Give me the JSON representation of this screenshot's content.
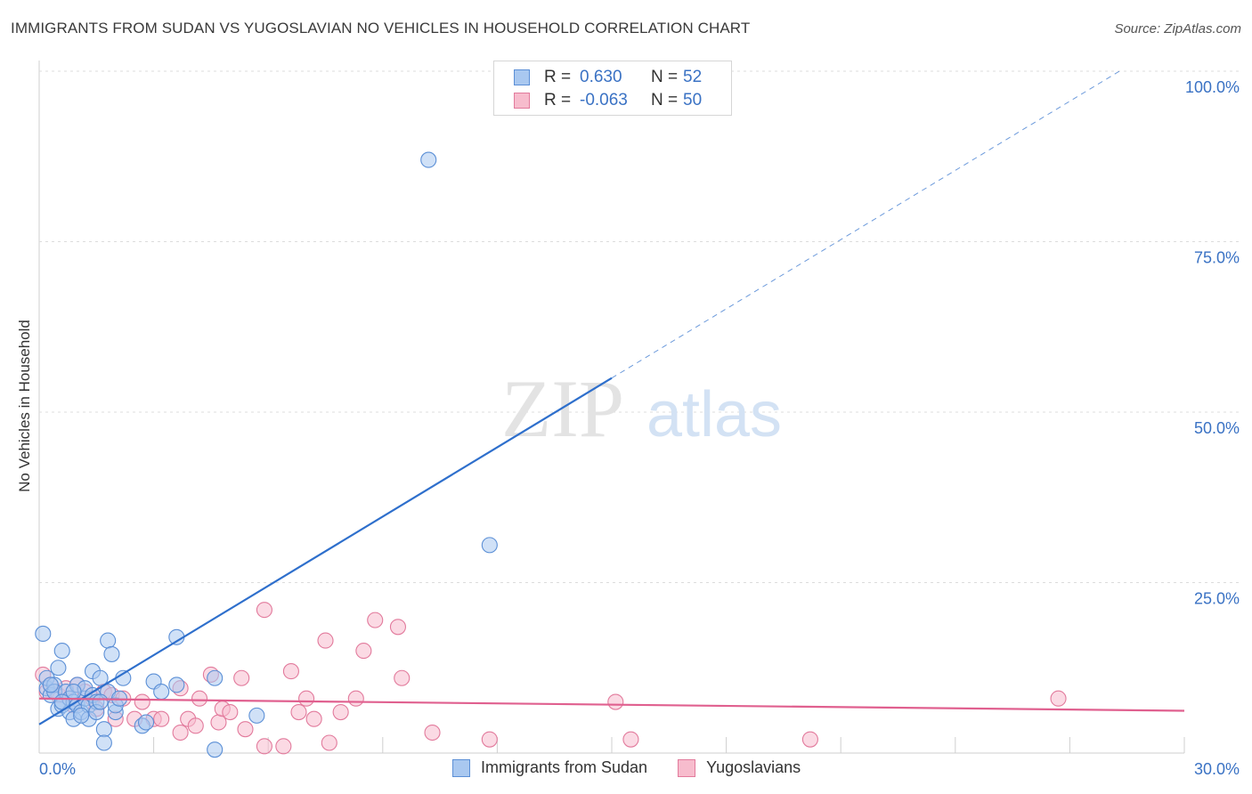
{
  "title": "IMMIGRANTS FROM SUDAN VS YUGOSLAVIAN NO VEHICLES IN HOUSEHOLD CORRELATION CHART",
  "source": "Source: ZipAtlas.com",
  "watermark": {
    "zip": "ZIP",
    "atlas": "atlas"
  },
  "legend": {
    "r_label": "R =",
    "n_label": "N =",
    "rows": [
      {
        "series": "Immigrants from Sudan",
        "r": "0.630",
        "n": "52"
      },
      {
        "series": "Yugoslavians",
        "r": "-0.063",
        "n": "50"
      }
    ]
  },
  "colors": {
    "sudan_fill": "#a9c8f0",
    "sudan_stroke": "#5b8fd6",
    "sudan_line": "#2e6fcc",
    "yugo_fill": "#f7bccd",
    "yugo_stroke": "#e27a9c",
    "yugo_line": "#e0608f",
    "axis_text": "#3a72c4",
    "grid": "#dcdcdc"
  },
  "chart_data": {
    "type": "scatter",
    "title": "IMMIGRANTS FROM SUDAN VS YUGOSLAVIAN NO VEHICLES IN HOUSEHOLD CORRELATION CHART",
    "xlabel": "",
    "ylabel": "No Vehicles in Household",
    "xlim": [
      0,
      30
    ],
    "ylim": [
      0,
      100
    ],
    "x_tick_labels": [
      "0.0%",
      "30.0%"
    ],
    "y_ticks": [
      25,
      50,
      75,
      100
    ],
    "y_tick_labels": [
      "25.0%",
      "50.0%",
      "75.0%",
      "100.0%"
    ],
    "grid": true,
    "legend_position": "bottom",
    "series": [
      {
        "name": "Immigrants from Sudan",
        "r": 0.63,
        "n": 52,
        "trend": {
          "x0": 0,
          "y0": 4.2,
          "x1": 15,
          "y1": 55,
          "dashed_to_x": 28.3,
          "dashed_to_y": 100
        },
        "points": [
          [
            0.1,
            17.5
          ],
          [
            0.2,
            9.5
          ],
          [
            0.2,
            11
          ],
          [
            0.3,
            8.5
          ],
          [
            0.4,
            10
          ],
          [
            0.4,
            9
          ],
          [
            0.5,
            12.5
          ],
          [
            0.5,
            6.5
          ],
          [
            0.6,
            15
          ],
          [
            0.6,
            7
          ],
          [
            0.7,
            9
          ],
          [
            0.8,
            8
          ],
          [
            0.8,
            6
          ],
          [
            0.9,
            7.5
          ],
          [
            0.9,
            5
          ],
          [
            1,
            10
          ],
          [
            1,
            7
          ],
          [
            1.1,
            6
          ],
          [
            1.2,
            8
          ],
          [
            1.2,
            9.5
          ],
          [
            1.3,
            7
          ],
          [
            1.3,
            5
          ],
          [
            1.4,
            8.5
          ],
          [
            1.4,
            12
          ],
          [
            1.5,
            7.5
          ],
          [
            1.5,
            6
          ],
          [
            1.6,
            11
          ],
          [
            1.7,
            3.5
          ],
          [
            1.7,
            1.5
          ],
          [
            1.8,
            9
          ],
          [
            1.8,
            16.5
          ],
          [
            1.9,
            14.5
          ],
          [
            2,
            6
          ],
          [
            2,
            7
          ],
          [
            2.2,
            11
          ],
          [
            2.7,
            4
          ],
          [
            3,
            10.5
          ],
          [
            3.6,
            17
          ],
          [
            3.6,
            10
          ],
          [
            4.6,
            11
          ],
          [
            4.6,
            0.5
          ],
          [
            5.7,
            5.5
          ],
          [
            10.2,
            87
          ],
          [
            11.8,
            30.5
          ],
          [
            0.3,
            10
          ],
          [
            0.6,
            7.5
          ],
          [
            0.9,
            9
          ],
          [
            1.1,
            5.5
          ],
          [
            2.8,
            4.5
          ],
          [
            1.6,
            7.5
          ],
          [
            2.1,
            8
          ],
          [
            3.2,
            9
          ]
        ]
      },
      {
        "name": "Yugoslavians",
        "r": -0.063,
        "n": 50,
        "trend": {
          "x0": 0,
          "y0": 8,
          "x1": 30,
          "y1": 6.2
        },
        "points": [
          [
            0.1,
            11.5
          ],
          [
            0.2,
            9
          ],
          [
            0.3,
            10
          ],
          [
            0.5,
            8.5
          ],
          [
            0.7,
            9.5
          ],
          [
            0.9,
            7
          ],
          [
            1,
            10
          ],
          [
            1.2,
            9
          ],
          [
            1.4,
            8
          ],
          [
            1.5,
            6.5
          ],
          [
            1.7,
            9
          ],
          [
            1.9,
            8.5
          ],
          [
            2,
            5
          ],
          [
            2.2,
            8
          ],
          [
            2.5,
            5
          ],
          [
            2.7,
            7.5
          ],
          [
            3,
            5
          ],
          [
            3.2,
            5
          ],
          [
            3.7,
            9.5
          ],
          [
            3.7,
            3
          ],
          [
            3.9,
            5
          ],
          [
            4.1,
            4
          ],
          [
            4.2,
            8
          ],
          [
            4.5,
            11.5
          ],
          [
            4.7,
            4.5
          ],
          [
            4.8,
            6.5
          ],
          [
            5,
            6
          ],
          [
            5.3,
            11
          ],
          [
            5.4,
            3.5
          ],
          [
            5.9,
            21
          ],
          [
            5.9,
            1
          ],
          [
            6.4,
            1
          ],
          [
            6.6,
            12
          ],
          [
            6.8,
            6
          ],
          [
            7,
            8
          ],
          [
            7.2,
            5
          ],
          [
            7.5,
            16.5
          ],
          [
            7.6,
            1.5
          ],
          [
            7.9,
            6
          ],
          [
            8.3,
            8
          ],
          [
            8.5,
            15
          ],
          [
            8.8,
            19.5
          ],
          [
            9.4,
            18.5
          ],
          [
            9.5,
            11
          ],
          [
            10.3,
            3
          ],
          [
            11.8,
            2
          ],
          [
            15.1,
            7.5
          ],
          [
            15.5,
            2
          ],
          [
            20.2,
            2
          ],
          [
            26.7,
            8
          ]
        ]
      }
    ]
  }
}
